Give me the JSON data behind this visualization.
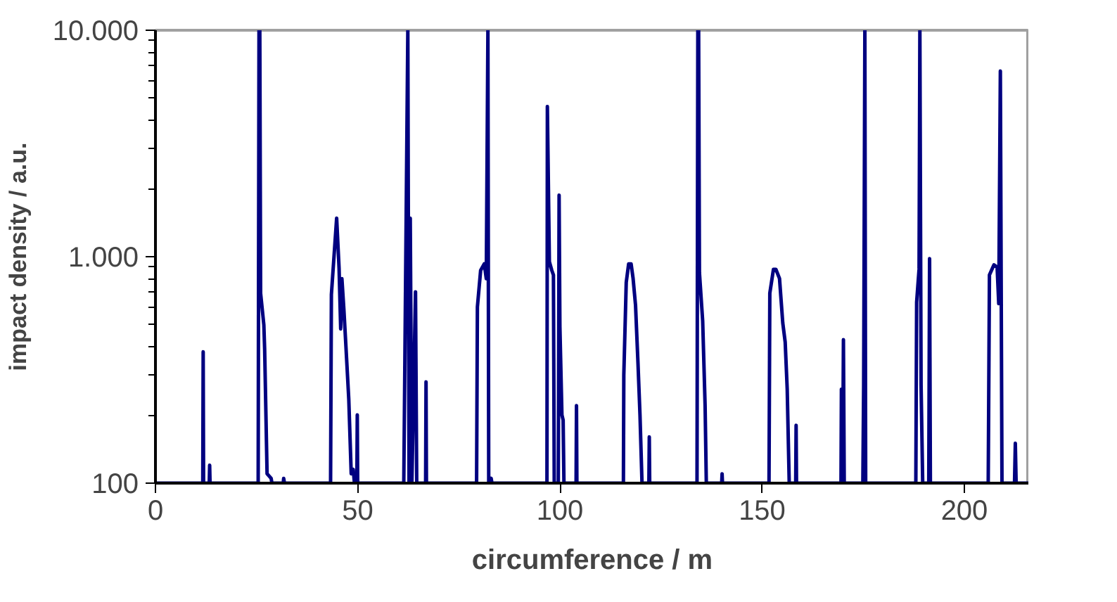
{
  "chart_data": {
    "type": "line",
    "xlabel": "circumference / m",
    "ylabel": "impact density / a.u.",
    "log": "y",
    "grid": false,
    "marker": "none",
    "line_style": "solid",
    "xlim": [
      0,
      216
    ],
    "xticks": [
      0,
      50,
      100,
      150,
      200
    ],
    "ylim": [
      100,
      10000
    ],
    "yticks": [
      {
        "value": 100,
        "label": "100"
      },
      {
        "value": 1000,
        "label": "1.000"
      },
      {
        "value": 10000,
        "label": "10.000"
      }
    ],
    "series": [
      {
        "color": "#000080",
        "x": [
          0,
          11.7,
          11.8,
          11.9,
          13.3,
          13.4,
          13.5,
          25.4,
          25.6,
          25.8,
          26.0,
          26.8,
          27.0,
          27.6,
          28.6,
          28.8,
          31.6,
          31.7,
          31.9,
          43.3,
          43.5,
          44.8,
          45.4,
          45.8,
          46.1,
          46.6,
          47.1,
          47.8,
          48.4,
          48.9,
          49.2,
          49.8,
          49.9,
          50.0,
          61.4,
          62.4,
          62.7,
          63.0,
          63.4,
          64.3,
          64.6,
          66.8,
          66.9,
          67.0,
          79.4,
          79.6,
          80.4,
          81.3,
          81.8,
          82.2,
          82.4,
          83.0,
          83.2,
          96.8,
          96.9,
          97.4,
          98.0,
          98.4,
          98.6,
          99.6,
          99.8,
          100.0,
          100.5,
          100.8,
          101.0,
          104.0,
          104.1,
          104.2,
          115.7,
          115.8,
          116.4,
          117.0,
          117.6,
          118.1,
          118.7,
          119.3,
          119.8,
          120.3,
          122.0,
          122.1,
          122.2,
          133.9,
          134.1,
          134.3,
          134.5,
          135.3,
          135.9,
          136.2,
          140.0,
          140.1,
          140.2,
          151.7,
          151.9,
          152.8,
          153.4,
          154.3,
          155.1,
          155.7,
          156.2,
          156.7,
          158.3,
          158.4,
          158.5,
          169.5,
          169.6,
          169.9,
          170.1,
          170.3,
          174.9,
          175.1,
          175.4,
          175.6,
          188.0,
          188.2,
          188.8,
          189.0,
          189.3,
          189.7,
          191.2,
          191.4,
          191.6,
          205.9,
          206.2,
          207.3,
          208.1,
          208.5,
          208.9,
          209.3,
          212.4,
          212.6,
          212.8,
          216
        ],
        "values": [
          100,
          100,
          380,
          100,
          100,
          120,
          100,
          100,
          10000,
          10000,
          690,
          500,
          390,
          110,
          105,
          100,
          100,
          105,
          100,
          100,
          680,
          1480,
          890,
          480,
          800,
          580,
          400,
          235,
          110,
          115,
          100,
          100,
          200,
          100,
          100,
          10000,
          100,
          1480,
          100,
          700,
          100,
          100,
          280,
          100,
          100,
          600,
          870,
          930,
          800,
          10000,
          100,
          105,
          100,
          100,
          4600,
          950,
          870,
          830,
          100,
          100,
          1870,
          490,
          200,
          190,
          100,
          100,
          220,
          100,
          100,
          300,
          770,
          930,
          930,
          800,
          610,
          340,
          200,
          100,
          100,
          160,
          100,
          100,
          10000,
          10000,
          850,
          520,
          220,
          100,
          100,
          110,
          100,
          100,
          690,
          880,
          880,
          800,
          510,
          420,
          260,
          100,
          100,
          180,
          100,
          100,
          260,
          100,
          430,
          100,
          100,
          270,
          10000,
          100,
          100,
          630,
          880,
          10000,
          270,
          100,
          100,
          980,
          100,
          100,
          830,
          920,
          900,
          620,
          6600,
          100,
          100,
          150,
          100,
          100
        ]
      }
    ]
  }
}
